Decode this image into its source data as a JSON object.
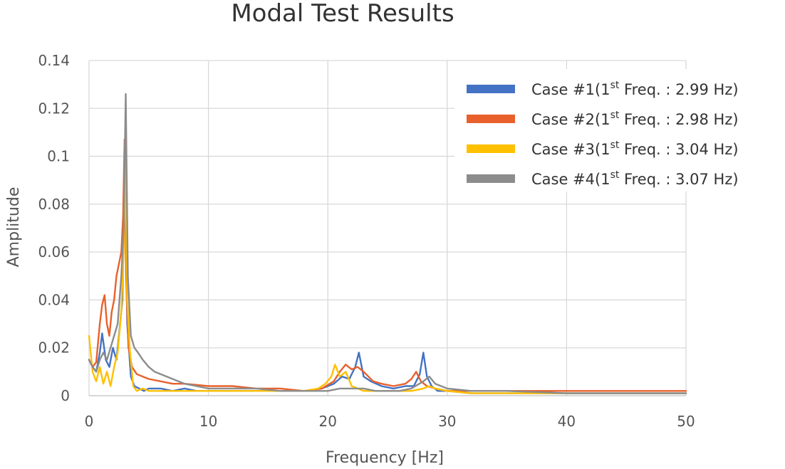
{
  "chart_data": {
    "type": "line",
    "title": "Modal Test Results",
    "xlabel": "Frequency  [Hz]",
    "ylabel": "Amplitude",
    "xlim": [
      0,
      50
    ],
    "ylim": [
      0,
      0.14
    ],
    "xticks": [
      0,
      10,
      20,
      30,
      40,
      50
    ],
    "yticks": [
      0,
      0.02,
      0.04,
      0.06,
      0.08,
      0.1,
      0.12,
      0.14
    ],
    "xtick_labels": [
      "0",
      "10",
      "20",
      "30",
      "40",
      "50"
    ],
    "ytick_labels": [
      "0",
      "0.02",
      "0.04",
      "0.06",
      "0.08",
      "0.1",
      "0.12",
      "0.14"
    ],
    "grid": true,
    "legend_position": "top-right",
    "series": [
      {
        "name": "Case #1",
        "legend_prefix": "Case #1(1",
        "legend_sup": "st",
        "legend_suffix": " Freq.  : 2.99  Hz)",
        "first_freq": 2.99,
        "color": "#4472C4",
        "x": [
          0,
          0.3,
          0.6,
          0.9,
          1.1,
          1.4,
          1.7,
          2.0,
          2.3,
          2.6,
          2.8,
          2.99,
          3.2,
          3.5,
          3.8,
          4.2,
          4.6,
          5,
          6,
          7,
          8,
          9,
          10,
          12,
          14,
          16,
          18,
          19.5,
          20.5,
          21.2,
          21.8,
          22.3,
          22.6,
          23.0,
          23.6,
          24.5,
          25.5,
          26.5,
          27.2,
          27.7,
          28.0,
          28.3,
          28.7,
          29.2,
          30,
          32,
          35,
          40,
          45,
          50
        ],
        "y": [
          0.015,
          0.012,
          0.01,
          0.018,
          0.026,
          0.015,
          0.012,
          0.02,
          0.015,
          0.03,
          0.04,
          0.095,
          0.03,
          0.008,
          0.004,
          0.003,
          0.002,
          0.003,
          0.003,
          0.002,
          0.003,
          0.002,
          0.002,
          0.002,
          0.002,
          0.002,
          0.002,
          0.003,
          0.005,
          0.008,
          0.007,
          0.012,
          0.018,
          0.008,
          0.006,
          0.004,
          0.003,
          0.004,
          0.004,
          0.009,
          0.018,
          0.008,
          0.004,
          0.002,
          0.002,
          0.001,
          0.001,
          0.001,
          0.001,
          0.001
        ]
      },
      {
        "name": "Case #2",
        "legend_prefix": "Case #2(1",
        "legend_sup": "st",
        "legend_suffix": " Freq.  : 2.98  Hz)",
        "first_freq": 2.98,
        "color": "#E8612C",
        "x": [
          0,
          0.3,
          0.6,
          0.9,
          1.1,
          1.3,
          1.5,
          1.7,
          1.9,
          2.1,
          2.3,
          2.5,
          2.7,
          2.85,
          2.98,
          3.1,
          3.3,
          3.6,
          4.0,
          4.5,
          5,
          6,
          7,
          8,
          10,
          12,
          14,
          16,
          18,
          19.5,
          20.5,
          21.0,
          21.5,
          22.0,
          22.5,
          23.0,
          23.8,
          24.5,
          25.5,
          26.5,
          27.0,
          27.4,
          27.8,
          28.3,
          29.0,
          30,
          32,
          35,
          40,
          45,
          50
        ],
        "y": [
          0.015,
          0.012,
          0.014,
          0.03,
          0.038,
          0.042,
          0.03,
          0.025,
          0.035,
          0.04,
          0.05,
          0.055,
          0.06,
          0.075,
          0.107,
          0.05,
          0.02,
          0.012,
          0.009,
          0.008,
          0.007,
          0.006,
          0.005,
          0.005,
          0.004,
          0.004,
          0.003,
          0.003,
          0.002,
          0.003,
          0.006,
          0.01,
          0.013,
          0.011,
          0.012,
          0.01,
          0.006,
          0.005,
          0.004,
          0.005,
          0.007,
          0.01,
          0.006,
          0.004,
          0.003,
          0.002,
          0.002,
          0.002,
          0.002,
          0.002,
          0.002
        ]
      },
      {
        "name": "Case #3",
        "legend_prefix": "Case #3(1",
        "legend_sup": "st",
        "legend_suffix": " Freq.  : 3.04  Hz)",
        "first_freq": 3.04,
        "color": "#FFC000",
        "x": [
          0,
          0.3,
          0.6,
          0.9,
          1.2,
          1.5,
          1.8,
          2.1,
          2.4,
          2.7,
          2.9,
          3.04,
          3.2,
          3.4,
          3.7,
          4.0,
          4.5,
          5,
          6,
          7,
          8,
          10,
          12,
          14,
          16,
          18,
          19.2,
          19.8,
          20.3,
          20.6,
          21.0,
          21.5,
          22.0,
          22.5,
          23.0,
          24,
          25,
          26,
          27,
          28,
          28.5,
          29,
          30,
          32,
          35,
          40,
          45,
          50
        ],
        "y": [
          0.025,
          0.01,
          0.006,
          0.012,
          0.005,
          0.01,
          0.004,
          0.012,
          0.018,
          0.035,
          0.06,
          0.098,
          0.04,
          0.02,
          0.004,
          0.002,
          0.003,
          0.002,
          0.002,
          0.002,
          0.002,
          0.002,
          0.002,
          0.002,
          0.002,
          0.002,
          0.003,
          0.005,
          0.008,
          0.013,
          0.008,
          0.01,
          0.004,
          0.003,
          0.002,
          0.002,
          0.002,
          0.002,
          0.002,
          0.003,
          0.004,
          0.003,
          0.002,
          0.001,
          0.001,
          0.001,
          0.001,
          0.001
        ]
      },
      {
        "name": "Case #4",
        "legend_prefix": "Case #4(1",
        "legend_sup": "st",
        "legend_suffix": " Freq.  : 3.07  Hz)",
        "first_freq": 3.07,
        "color": "#8C8C8C",
        "x": [
          0,
          0.3,
          0.6,
          0.9,
          1.2,
          1.5,
          1.8,
          2.1,
          2.4,
          2.7,
          2.9,
          3.07,
          3.25,
          3.5,
          3.8,
          4.1,
          4.5,
          5,
          5.5,
          6,
          7,
          8,
          9,
          10,
          12,
          14,
          16,
          18,
          20,
          21,
          22,
          23,
          24,
          25,
          26,
          27,
          28,
          28.5,
          29,
          30,
          32,
          35,
          40,
          45,
          50
        ],
        "y": [
          0.015,
          0.012,
          0.01,
          0.015,
          0.018,
          0.015,
          0.02,
          0.025,
          0.03,
          0.05,
          0.07,
          0.126,
          0.05,
          0.025,
          0.02,
          0.018,
          0.015,
          0.012,
          0.01,
          0.009,
          0.007,
          0.005,
          0.004,
          0.003,
          0.003,
          0.003,
          0.002,
          0.002,
          0.002,
          0.003,
          0.003,
          0.003,
          0.002,
          0.002,
          0.002,
          0.003,
          0.006,
          0.008,
          0.005,
          0.003,
          0.002,
          0.002,
          0.001,
          0.001,
          0.001
        ]
      }
    ]
  }
}
